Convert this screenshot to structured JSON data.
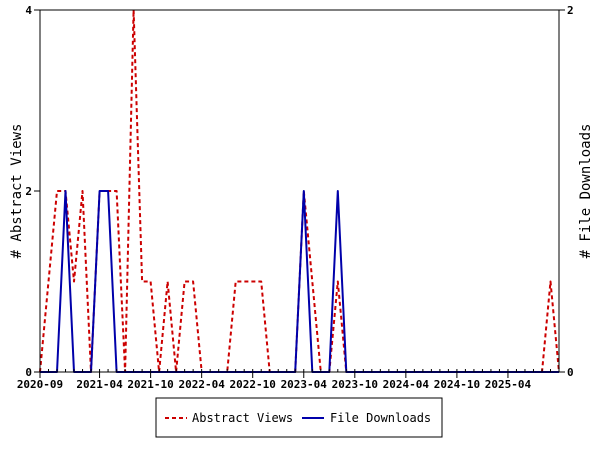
{
  "chart_data": {
    "type": "line",
    "x_ticks": [
      "2020-09",
      "2021-04",
      "2021-10",
      "2022-04",
      "2022-10",
      "2023-04",
      "2023-10",
      "2024-04",
      "2024-10",
      "2025-04"
    ],
    "x_start": "2020-09",
    "x_end": "2025-10",
    "ylabel_left": "# Abstract Views",
    "ylabel_right": "# File Downloads",
    "ylim_left": [
      0,
      4
    ],
    "ylim_right": [
      0,
      2
    ],
    "yticks_left": [
      "0",
      "2",
      "4"
    ],
    "yticks_right": [
      "0",
      "2"
    ],
    "legend_position": "bottom",
    "series": [
      {
        "name": "Abstract Views",
        "axis": "left",
        "color": "#cc0000",
        "style": "dashed",
        "months": [
          "2020-09",
          "2020-10",
          "2020-11",
          "2020-12",
          "2021-01",
          "2021-02",
          "2021-03",
          "2021-04",
          "2021-05",
          "2021-06",
          "2021-07",
          "2021-08",
          "2021-09",
          "2021-10",
          "2021-11",
          "2021-12",
          "2022-01",
          "2022-02",
          "2022-03",
          "2022-04",
          "2022-05",
          "2022-06",
          "2022-07",
          "2022-08",
          "2022-09",
          "2022-10",
          "2022-11",
          "2022-12",
          "2023-01",
          "2023-02",
          "2023-03",
          "2023-04",
          "2023-05",
          "2023-06",
          "2023-07",
          "2023-08",
          "2023-09",
          "2023-10",
          "2023-11",
          "2023-12",
          "2024-01",
          "2024-02",
          "2024-03",
          "2024-04",
          "2024-05",
          "2024-06",
          "2024-07",
          "2024-08",
          "2024-09",
          "2024-10",
          "2024-11",
          "2024-12",
          "2025-01",
          "2025-02",
          "2025-03",
          "2025-04",
          "2025-05",
          "2025-06",
          "2025-07",
          "2025-08",
          "2025-09",
          "2025-10"
        ],
        "values": [
          0,
          1,
          2,
          2,
          1,
          2,
          0,
          2,
          2,
          2,
          0,
          4,
          1,
          1,
          0,
          1,
          0,
          1,
          1,
          0,
          0,
          0,
          0,
          1,
          1,
          1,
          1,
          0,
          0,
          0,
          0,
          2,
          1,
          0,
          0,
          1,
          0,
          0,
          0,
          0,
          0,
          0,
          0,
          0,
          0,
          0,
          0,
          0,
          0,
          0,
          0,
          0,
          0,
          0,
          0,
          0,
          0,
          0,
          0,
          0,
          1,
          0
        ]
      },
      {
        "name": "File Downloads",
        "axis": "right",
        "color": "#0000aa",
        "style": "solid",
        "months": [
          "2020-09",
          "2020-10",
          "2020-11",
          "2020-12",
          "2021-01",
          "2021-02",
          "2021-03",
          "2021-04",
          "2021-05",
          "2021-06",
          "2021-07",
          "2021-08",
          "2021-09",
          "2021-10",
          "2021-11",
          "2021-12",
          "2022-01",
          "2022-02",
          "2022-03",
          "2022-04",
          "2022-05",
          "2022-06",
          "2022-07",
          "2022-08",
          "2022-09",
          "2022-10",
          "2022-11",
          "2022-12",
          "2023-01",
          "2023-02",
          "2023-03",
          "2023-04",
          "2023-05",
          "2023-06",
          "2023-07",
          "2023-08",
          "2023-09",
          "2023-10",
          "2023-11",
          "2023-12",
          "2024-01",
          "2024-02",
          "2024-03",
          "2024-04",
          "2024-05",
          "2024-06",
          "2024-07",
          "2024-08",
          "2024-09",
          "2024-10",
          "2024-11",
          "2024-12",
          "2025-01",
          "2025-02",
          "2025-03",
          "2025-04",
          "2025-05",
          "2025-06",
          "2025-07",
          "2025-08",
          "2025-09",
          "2025-10"
        ],
        "values": [
          0,
          0,
          0,
          1,
          0,
          0,
          0,
          1,
          1,
          0,
          0,
          0,
          0,
          0,
          0,
          0,
          0,
          0,
          0,
          0,
          0,
          0,
          0,
          0,
          0,
          0,
          0,
          0,
          0,
          0,
          0,
          1,
          0,
          0,
          0,
          1,
          0,
          0,
          0,
          0,
          0,
          0,
          0,
          0,
          0,
          0,
          0,
          0,
          0,
          0,
          0,
          0,
          0,
          0,
          0,
          0,
          0,
          0,
          0,
          0,
          0,
          0
        ]
      }
    ]
  }
}
